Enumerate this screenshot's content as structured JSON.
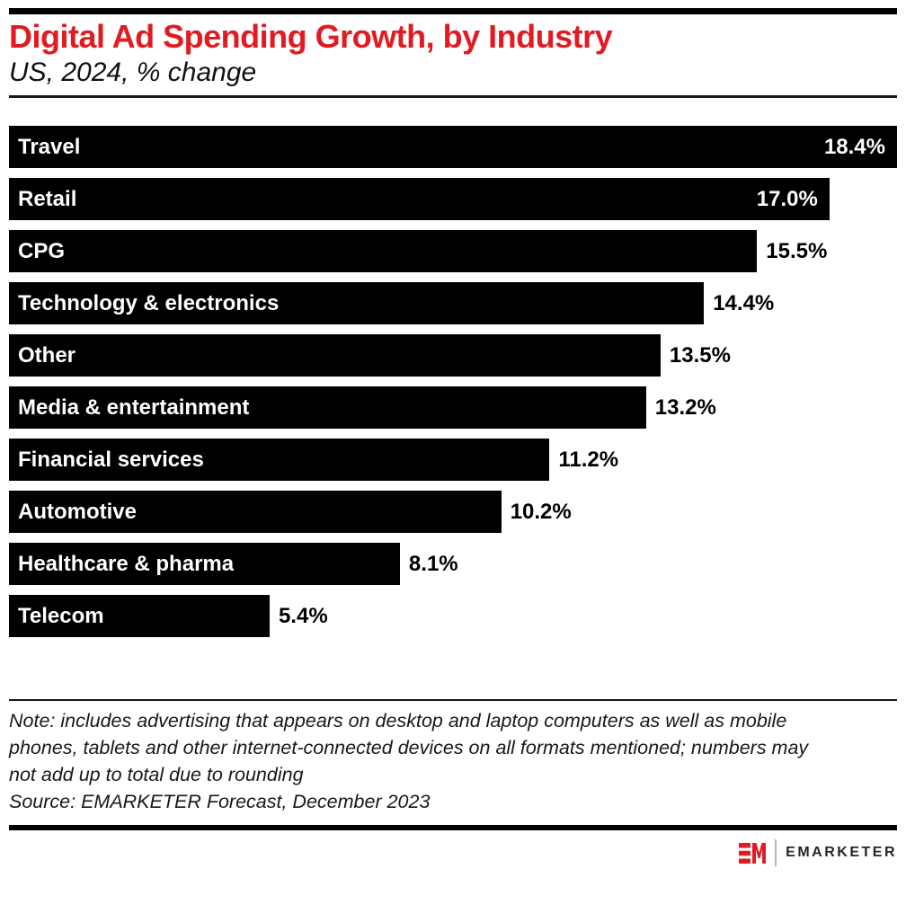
{
  "page": {
    "background": "#ffffff",
    "accent_red": "#e11b22"
  },
  "header": {
    "title": "Digital Ad Spending Growth, by Industry",
    "subtitle": "US, 2024, % change"
  },
  "chart_data": {
    "type": "bar",
    "orientation": "horizontal",
    "title": "Digital Ad Spending Growth, by Industry",
    "subtitle": "US, 2024, % change",
    "unit": "% change",
    "xlim": [
      0,
      18.4
    ],
    "grid": false,
    "legend": false,
    "categories": [
      "Travel",
      "Retail",
      "CPG",
      "Technology & electronics",
      "Other",
      "Media & entertainment",
      "Financial services",
      "Automotive",
      "Healthcare & pharma",
      "Telecom"
    ],
    "values": [
      18.4,
      17.0,
      15.5,
      14.4,
      13.5,
      13.2,
      11.2,
      10.2,
      8.1,
      5.4
    ],
    "value_labels": [
      "18.4%",
      "17.0%",
      "15.5%",
      "14.4%",
      "13.5%",
      "13.2%",
      "11.2%",
      "10.2%",
      "8.1%",
      "5.4%"
    ],
    "inside_label_count": 2,
    "bar_color": "#000000",
    "inside_label_color": "#ffffff",
    "outside_label_color": "#000000"
  },
  "footer": {
    "note": "Note: includes advertising that appears on desktop and laptop computers as well as mobile\nphones, tablets and other internet-connected devices on all formats mentioned; numbers may\nnot add up to total due to rounding",
    "source": "Source: EMARKETER Forecast, December 2023"
  },
  "branding": {
    "brand_name": "EMARKETER",
    "logo_icon": "em-monogram",
    "logo_color": "#e11b22",
    "wordmark_color": "#23262a"
  }
}
